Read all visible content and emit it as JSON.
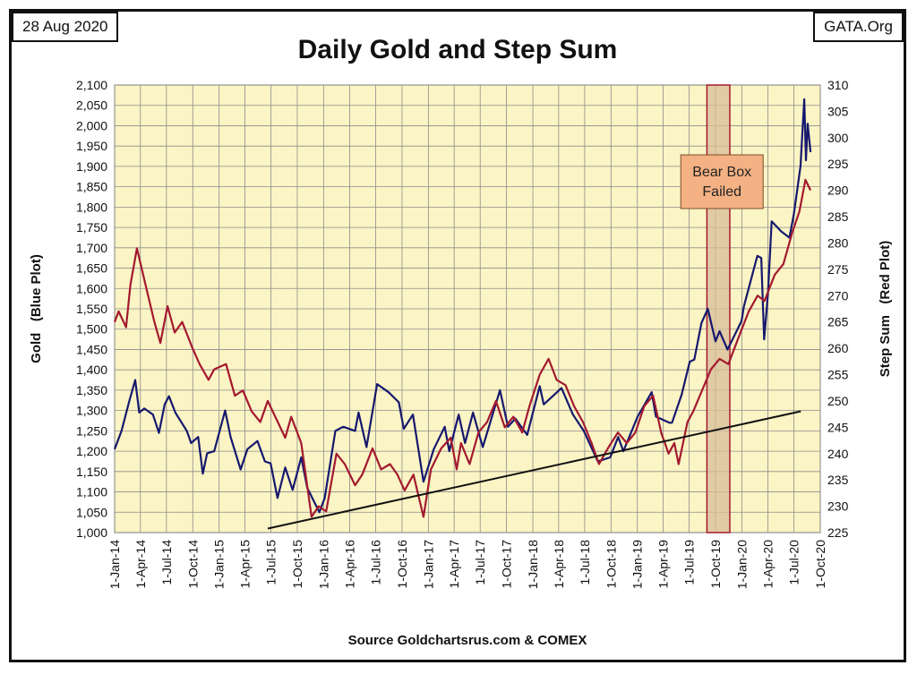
{
  "header": {
    "date": "28 Aug 2020",
    "site": "GATA.Org"
  },
  "chart_data": {
    "type": "line",
    "title": "Daily Gold and Step Sum",
    "xlabel": "Source Goldchartsrus.com & COMEX",
    "ylabel": "Gold   (Blue Plot)",
    "y2label": "Step Sum   (Red Plot)",
    "x_range": [
      "2014-01-01",
      "2020-10-01"
    ],
    "ylim": [
      1000,
      2100
    ],
    "y2lim": [
      225,
      310
    ],
    "y_ticks": [
      "1,000",
      "1,050",
      "1,100",
      "1,150",
      "1,200",
      "1,250",
      "1,300",
      "1,350",
      "1,400",
      "1,450",
      "1,500",
      "1,550",
      "1,600",
      "1,650",
      "1,700",
      "1,750",
      "1,800",
      "1,850",
      "1,900",
      "1,950",
      "2,000",
      "2,050",
      "2,100"
    ],
    "y2_ticks": [
      "225",
      "230",
      "235",
      "240",
      "245",
      "250",
      "255",
      "260",
      "265",
      "270",
      "275",
      "280",
      "285",
      "290",
      "295",
      "300",
      "305",
      "310"
    ],
    "x_ticks": [
      {
        "date": "2014-01-01",
        "label": "1-Jan-14"
      },
      {
        "date": "2014-04-01",
        "label": "1-Apr-14"
      },
      {
        "date": "2014-07-01",
        "label": "1-Jul-14"
      },
      {
        "date": "2014-10-01",
        "label": "1-Oct-14"
      },
      {
        "date": "2015-01-01",
        "label": "1-Jan-15"
      },
      {
        "date": "2015-04-01",
        "label": "1-Apr-15"
      },
      {
        "date": "2015-07-01",
        "label": "1-Jul-15"
      },
      {
        "date": "2015-10-01",
        "label": "1-Oct-15"
      },
      {
        "date": "2016-01-01",
        "label": "1-Jan-16"
      },
      {
        "date": "2016-04-01",
        "label": "1-Apr-16"
      },
      {
        "date": "2016-07-01",
        "label": "1-Jul-16"
      },
      {
        "date": "2016-10-01",
        "label": "1-Oct-16"
      },
      {
        "date": "2017-01-01",
        "label": "1-Jan-17"
      },
      {
        "date": "2017-04-01",
        "label": "1-Apr-17"
      },
      {
        "date": "2017-07-01",
        "label": "1-Jul-17"
      },
      {
        "date": "2017-10-01",
        "label": "1-Oct-17"
      },
      {
        "date": "2018-01-01",
        "label": "1-Jan-18"
      },
      {
        "date": "2018-04-01",
        "label": "1-Apr-18"
      },
      {
        "date": "2018-07-01",
        "label": "1-Jul-18"
      },
      {
        "date": "2018-10-01",
        "label": "1-Oct-18"
      },
      {
        "date": "2019-01-01",
        "label": "1-Jan-19"
      },
      {
        "date": "2019-04-01",
        "label": "1-Apr-19"
      },
      {
        "date": "2019-07-01",
        "label": "1-Jul-19"
      },
      {
        "date": "2019-10-01",
        "label": "1-Oct-19"
      },
      {
        "date": "2020-01-01",
        "label": "1-Jan-20"
      },
      {
        "date": "2020-04-01",
        "label": "1-Apr-20"
      },
      {
        "date": "2020-07-01",
        "label": "1-Jul-20"
      },
      {
        "date": "2020-10-01",
        "label": "1-Oct-20"
      }
    ],
    "grid": true,
    "colors": {
      "plot_bg": "#fbf4c4",
      "grid": "#8c8c8c",
      "gold": "#15186e",
      "step_sum": "#a3192f",
      "trend": "#111111",
      "bear_box": "#d8bd9a",
      "annotation_fill": "#f4b183"
    },
    "series": [
      {
        "name": "Gold   (Blue Plot)",
        "axis": "left",
        "points": [
          [
            "2014-01-01",
            1205
          ],
          [
            "2014-01-25",
            1250
          ],
          [
            "2014-02-20",
            1320
          ],
          [
            "2014-03-14",
            1375
          ],
          [
            "2014-03-28",
            1295
          ],
          [
            "2014-04-15",
            1305
          ],
          [
            "2014-05-15",
            1290
          ],
          [
            "2014-06-05",
            1245
          ],
          [
            "2014-06-25",
            1315
          ],
          [
            "2014-07-10",
            1335
          ],
          [
            "2014-08-01",
            1295
          ],
          [
            "2014-09-10",
            1250
          ],
          [
            "2014-09-25",
            1220
          ],
          [
            "2014-10-20",
            1235
          ],
          [
            "2014-11-05",
            1145
          ],
          [
            "2014-11-20",
            1195
          ],
          [
            "2014-12-15",
            1200
          ],
          [
            "2015-01-22",
            1300
          ],
          [
            "2015-02-10",
            1235
          ],
          [
            "2015-03-17",
            1155
          ],
          [
            "2015-04-10",
            1205
          ],
          [
            "2015-05-15",
            1225
          ],
          [
            "2015-06-10",
            1175
          ],
          [
            "2015-06-30",
            1170
          ],
          [
            "2015-07-24",
            1085
          ],
          [
            "2015-08-20",
            1160
          ],
          [
            "2015-09-15",
            1105
          ],
          [
            "2015-10-15",
            1185
          ],
          [
            "2015-11-05",
            1110
          ],
          [
            "2015-12-17",
            1050
          ],
          [
            "2016-01-05",
            1085
          ],
          [
            "2016-02-11",
            1250
          ],
          [
            "2016-03-10",
            1260
          ],
          [
            "2016-04-20",
            1250
          ],
          [
            "2016-05-02",
            1295
          ],
          [
            "2016-05-30",
            1210
          ],
          [
            "2016-07-06",
            1365
          ],
          [
            "2016-08-15",
            1345
          ],
          [
            "2016-09-20",
            1320
          ],
          [
            "2016-10-07",
            1255
          ],
          [
            "2016-11-08",
            1290
          ],
          [
            "2016-12-15",
            1125
          ],
          [
            "2017-01-20",
            1205
          ],
          [
            "2017-02-27",
            1260
          ],
          [
            "2017-03-15",
            1200
          ],
          [
            "2017-04-17",
            1290
          ],
          [
            "2017-05-09",
            1220
          ],
          [
            "2017-06-06",
            1295
          ],
          [
            "2017-07-10",
            1210
          ],
          [
            "2017-09-08",
            1350
          ],
          [
            "2017-10-06",
            1260
          ],
          [
            "2017-11-01",
            1280
          ],
          [
            "2017-12-12",
            1240
          ],
          [
            "2018-01-25",
            1360
          ],
          [
            "2018-02-08",
            1315
          ],
          [
            "2018-04-11",
            1355
          ],
          [
            "2018-05-21",
            1290
          ],
          [
            "2018-06-28",
            1250
          ],
          [
            "2018-08-16",
            1175
          ],
          [
            "2018-09-28",
            1185
          ],
          [
            "2018-10-26",
            1235
          ],
          [
            "2018-11-13",
            1200
          ],
          [
            "2019-01-02",
            1285
          ],
          [
            "2019-02-20",
            1345
          ],
          [
            "2019-03-07",
            1285
          ],
          [
            "2019-04-23",
            1270
          ],
          [
            "2019-05-02",
            1270
          ],
          [
            "2019-06-05",
            1340
          ],
          [
            "2019-07-03",
            1420
          ],
          [
            "2019-07-19",
            1425
          ],
          [
            "2019-08-13",
            1515
          ],
          [
            "2019-09-04",
            1550
          ],
          [
            "2019-10-01",
            1470
          ],
          [
            "2019-10-15",
            1495
          ],
          [
            "2019-11-12",
            1450
          ],
          [
            "2019-12-31",
            1520
          ],
          [
            "2020-01-08",
            1555
          ],
          [
            "2020-02-24",
            1680
          ],
          [
            "2020-03-09",
            1675
          ],
          [
            "2020-03-19",
            1475
          ],
          [
            "2020-04-01",
            1585
          ],
          [
            "2020-04-14",
            1765
          ],
          [
            "2020-05-18",
            1740
          ],
          [
            "2020-06-15",
            1725
          ],
          [
            "2020-06-30",
            1780
          ],
          [
            "2020-07-24",
            1900
          ],
          [
            "2020-08-06",
            2065
          ],
          [
            "2020-08-12",
            1915
          ],
          [
            "2020-08-18",
            2005
          ],
          [
            "2020-08-28",
            1935
          ]
        ]
      },
      {
        "name": "Step Sum   (Red Plot)",
        "axis": "right",
        "points": [
          [
            "2014-01-01",
            265
          ],
          [
            "2014-01-15",
            267
          ],
          [
            "2014-02-10",
            264
          ],
          [
            "2014-02-25",
            272
          ],
          [
            "2014-03-20",
            279
          ],
          [
            "2014-04-15",
            273
          ],
          [
            "2014-05-20",
            265
          ],
          [
            "2014-06-10",
            261
          ],
          [
            "2014-07-05",
            268
          ],
          [
            "2014-07-30",
            263
          ],
          [
            "2014-08-25",
            265
          ],
          [
            "2014-09-30",
            260
          ],
          [
            "2014-10-25",
            257
          ],
          [
            "2014-11-25",
            254
          ],
          [
            "2014-12-15",
            256
          ],
          [
            "2015-01-25",
            257
          ],
          [
            "2015-02-25",
            251
          ],
          [
            "2015-03-25",
            252
          ],
          [
            "2015-04-25",
            248
          ],
          [
            "2015-05-25",
            246
          ],
          [
            "2015-06-20",
            250
          ],
          [
            "2015-07-25",
            246
          ],
          [
            "2015-08-20",
            243
          ],
          [
            "2015-09-10",
            247
          ],
          [
            "2015-10-15",
            242
          ],
          [
            "2015-11-20",
            228
          ],
          [
            "2015-12-15",
            230
          ],
          [
            "2016-01-10",
            229
          ],
          [
            "2016-02-15",
            240
          ],
          [
            "2016-03-15",
            238
          ],
          [
            "2016-04-20",
            234
          ],
          [
            "2016-05-15",
            236
          ],
          [
            "2016-06-20",
            241
          ],
          [
            "2016-07-20",
            237
          ],
          [
            "2016-08-20",
            238
          ],
          [
            "2016-09-15",
            236
          ],
          [
            "2016-10-10",
            233
          ],
          [
            "2016-11-10",
            236
          ],
          [
            "2016-12-15",
            228
          ],
          [
            "2017-01-10",
            237
          ],
          [
            "2017-02-15",
            241
          ],
          [
            "2017-03-20",
            243
          ],
          [
            "2017-04-10",
            237
          ],
          [
            "2017-04-25",
            242
          ],
          [
            "2017-05-25",
            238
          ],
          [
            "2017-06-25",
            244
          ],
          [
            "2017-07-25",
            246
          ],
          [
            "2017-08-25",
            250
          ],
          [
            "2017-09-25",
            245
          ],
          [
            "2017-10-25",
            247
          ],
          [
            "2017-11-25",
            244
          ],
          [
            "2017-12-20",
            249
          ],
          [
            "2018-01-25",
            255
          ],
          [
            "2018-02-25",
            258
          ],
          [
            "2018-03-25",
            254
          ],
          [
            "2018-04-25",
            253
          ],
          [
            "2018-05-25",
            249
          ],
          [
            "2018-06-25",
            246
          ],
          [
            "2018-07-25",
            242
          ],
          [
            "2018-08-20",
            238
          ],
          [
            "2018-09-20",
            241
          ],
          [
            "2018-10-25",
            244
          ],
          [
            "2018-11-25",
            242
          ],
          [
            "2018-12-25",
            244
          ],
          [
            "2019-01-25",
            249
          ],
          [
            "2019-02-25",
            251
          ],
          [
            "2019-03-25",
            244
          ],
          [
            "2019-04-20",
            240
          ],
          [
            "2019-05-10",
            242
          ],
          [
            "2019-05-25",
            238
          ],
          [
            "2019-06-25",
            246
          ],
          [
            "2019-07-15",
            248
          ],
          [
            "2019-08-15",
            252
          ],
          [
            "2019-09-15",
            256
          ],
          [
            "2019-10-15",
            258
          ],
          [
            "2019-11-15",
            257
          ],
          [
            "2019-12-20",
            262
          ],
          [
            "2020-01-25",
            267
          ],
          [
            "2020-02-25",
            270
          ],
          [
            "2020-03-20",
            269
          ],
          [
            "2020-04-25",
            274
          ],
          [
            "2020-05-25",
            276
          ],
          [
            "2020-06-25",
            282
          ],
          [
            "2020-07-20",
            286
          ],
          [
            "2020-08-10",
            292
          ],
          [
            "2020-08-28",
            290
          ]
        ]
      },
      {
        "name": "trend",
        "axis": "left",
        "points": [
          [
            "2015-06-20",
            1010
          ],
          [
            "2020-07-25",
            1298
          ]
        ]
      }
    ],
    "annotations": [
      {
        "type": "shaded_span",
        "from": "2019-09-01",
        "to": "2019-11-20"
      },
      {
        "type": "label",
        "lines": [
          "Bear Box",
          "Failed"
        ]
      }
    ]
  }
}
